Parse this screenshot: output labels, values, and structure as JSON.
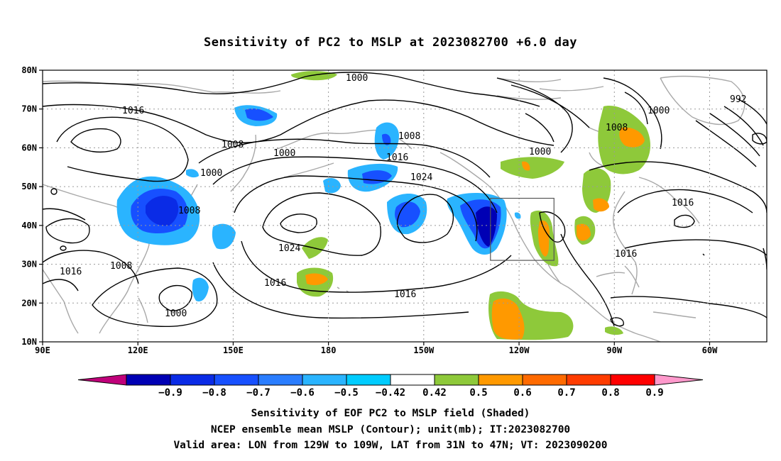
{
  "title": "Sensitivity of PC2 to MSLP at 2023082700 +6.0 day",
  "map": {
    "lat_labels": [
      "80N",
      "70N",
      "60N",
      "50N",
      "40N",
      "30N",
      "20N",
      "10N"
    ],
    "lon_labels": [
      "90E",
      "120E",
      "150E",
      "180",
      "150W",
      "120W",
      "90W",
      "60W"
    ],
    "contour_labels": [
      "1000",
      "1016",
      "992",
      "1008",
      "1000",
      "1008",
      "1000",
      "1008",
      "1000",
      "1016",
      "1008",
      "1016",
      "1024",
      "1000",
      "1016",
      "1024",
      "1016",
      "1008",
      "1016",
      "1000",
      "1016"
    ],
    "gridlines": true,
    "valid_area": {
      "lon": [
        -129,
        -109
      ],
      "lat": [
        31,
        47
      ]
    }
  },
  "colorbar": {
    "labels": [
      "−0.9",
      "−0.8",
      "−0.7",
      "−0.6",
      "−0.5",
      "−0.42",
      "0.42",
      "0.5",
      "0.6",
      "0.7",
      "0.8",
      "0.9"
    ],
    "colors": [
      "#c0007a",
      "#0000b4",
      "#0a2be6",
      "#1750ff",
      "#2a7dff",
      "#2ab4ff",
      "#00ccff",
      "#ffffff",
      "#8ec93a",
      "#ff9900",
      "#ff6a00",
      "#ff3c00",
      "#ff0000",
      "#ff99cc"
    ]
  },
  "captions": [
    "Sensitivity of EOF PC2 to MSLP field (Shaded)",
    "NCEP ensemble mean MSLP (Contour); unit(mb); IT:2023082700",
    "Valid area: LON from 129W to 109W, LAT from 31N to 47N; VT: 2023090200"
  ]
}
